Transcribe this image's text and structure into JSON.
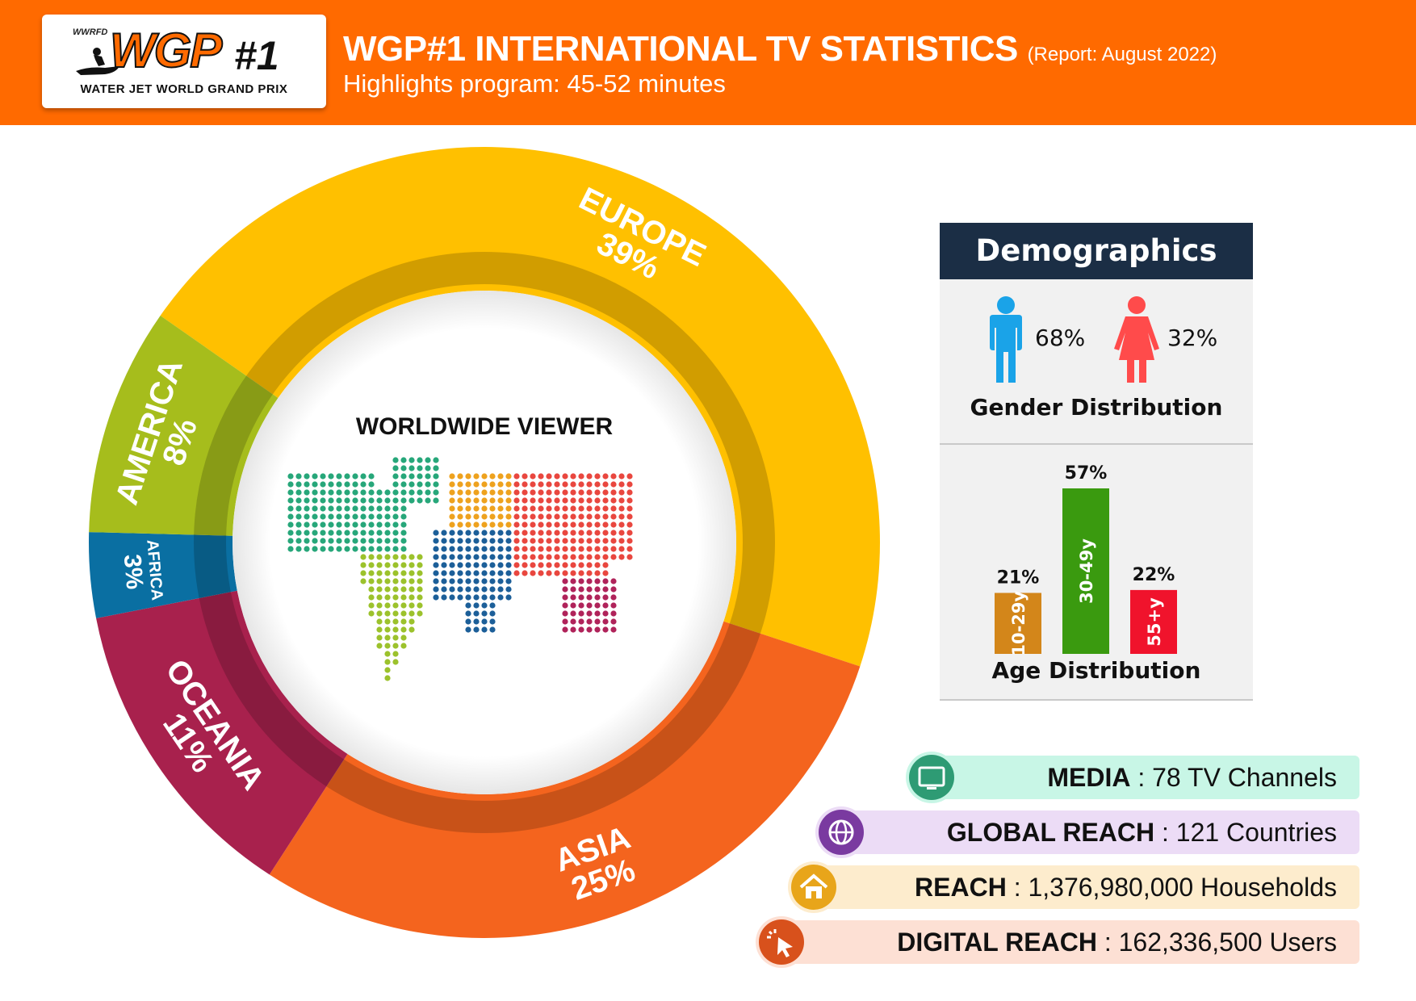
{
  "header": {
    "logo": {
      "top_text": "WWRFD",
      "main_text": "WGP",
      "number_text": "#1",
      "subtitle": "WATER JET WORLD GRAND PRIX"
    },
    "title": "WGP#1 INTERNATIONAL TV STATISTICS",
    "title_note": "(Report: August 2022)",
    "subtitle": "Highlights program: 45-52 minutes"
  },
  "center_label": "WORLDWIDE VIEWER",
  "chart_data": [
    {
      "type": "pie",
      "categories": [
        "EUROPE",
        "ASIA",
        "OCEANIA",
        "AFRICA",
        "AMERICA"
      ],
      "values": [
        39,
        25,
        11,
        3,
        8
      ],
      "labels": [
        "39%",
        "25%",
        "11%",
        "3%",
        "8%"
      ],
      "colors": [
        "#ffc000",
        "#f4641e",
        "#a8214d",
        "#0a6fa2",
        "#a6bd1c"
      ]
    },
    {
      "type": "bar",
      "title": "Age Distribution",
      "categories": [
        "10-29y",
        "30-49y",
        "55+y"
      ],
      "values": [
        21,
        57,
        22
      ],
      "labels": [
        "21%",
        "57%",
        "22%"
      ],
      "colors": [
        "#d3861a",
        "#3a9a0f",
        "#f0132c"
      ]
    }
  ],
  "demographics": {
    "title": "Demographics",
    "male_pct": "68%",
    "female_pct": "32%",
    "male_color": "#1aa3e8",
    "female_color": "#ff4b4b",
    "gender_label": "Gender Distribution"
  },
  "stats": [
    {
      "label": "MEDIA",
      "value": " : 78 TV Channels",
      "icon": "tv-icon",
      "bg": "#c8f6e6",
      "icon_color": "#2e9b74"
    },
    {
      "label": "GLOBAL REACH",
      "value": " : 121 Countries",
      "icon": "globe-icon",
      "bg": "#ecdcf6",
      "icon_color": "#7a3aa0"
    },
    {
      "label": "REACH",
      "value": " : 1,376,980,000 Households",
      "icon": "home-icon",
      "bg": "#fdeccd",
      "icon_color": "#e8a51a"
    },
    {
      "label": "DIGITAL REACH",
      "value": " : 162,336,500 Users",
      "icon": "cursor-click-icon",
      "bg": "#fde0d4",
      "icon_color": "#d8511c"
    }
  ]
}
